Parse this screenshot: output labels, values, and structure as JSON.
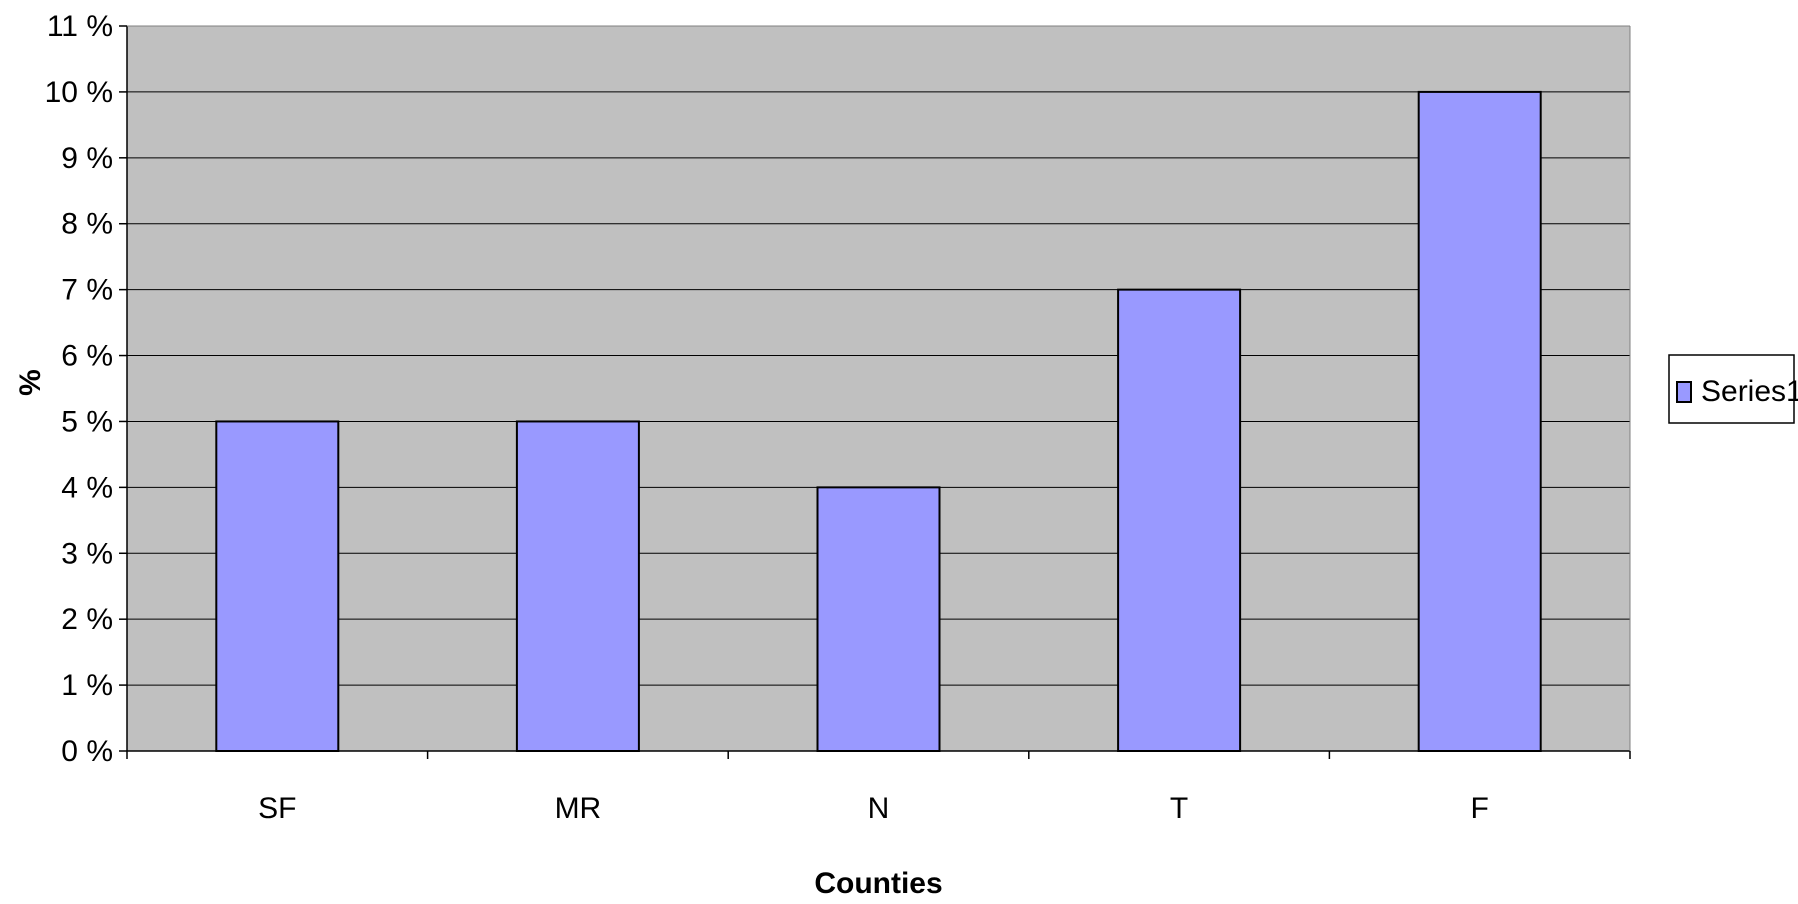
{
  "chart_data": {
    "type": "bar",
    "categories": [
      "SF",
      "MR",
      "N",
      "T",
      "F"
    ],
    "series": [
      {
        "name": "Series1",
        "values": [
          5,
          5,
          4,
          7,
          10
        ]
      }
    ],
    "xlabel": "Counties",
    "ylabel": "%",
    "ylim": [
      0,
      11
    ],
    "yticks": [
      0,
      1,
      2,
      3,
      4,
      5,
      6,
      7,
      8,
      9,
      10,
      11
    ],
    "ytick_labels": [
      "0 %",
      "1 %",
      "2 %",
      "3 %",
      "4 %",
      "5 %",
      "6 %",
      "7 %",
      "8 %",
      "9 %",
      "10 %",
      "11 %"
    ],
    "grid": true,
    "legend_position": "right",
    "colors": {
      "plot_background": "#c0c0c0",
      "bar_fill": "#9999ff",
      "bar_stroke": "#000000",
      "gridline": "#000000"
    }
  }
}
